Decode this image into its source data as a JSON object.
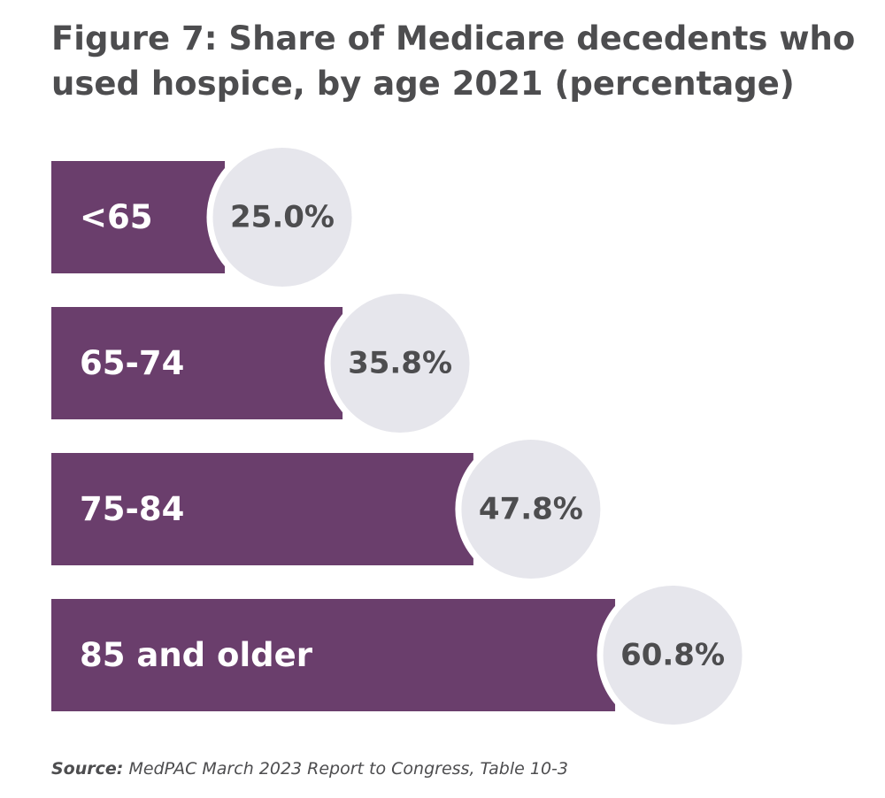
{
  "title": "Figure 7: Share of Medicare decedents who used hospice, by age 2021 (percentage)",
  "source": {
    "label": "Source:",
    "text": "MedPAC March 2023 Report to Congress, Table 10-3"
  },
  "colors": {
    "bar": "#6a3e6c",
    "bubble": "#e6e6ec",
    "bubble_ring": "#ffffff",
    "value_text": "#4d4d4f",
    "bar_text": "#ffffff"
  },
  "chart_data": {
    "type": "bar",
    "orientation": "horizontal",
    "categories": [
      "<65",
      "65-74",
      "75-84",
      "85 and older"
    ],
    "values": [
      25.0,
      35.8,
      47.8,
      60.8
    ],
    "value_labels": [
      "25.0%",
      "35.8%",
      "47.8%",
      "60.8%"
    ],
    "unit": "%",
    "title": "Figure 7: Share of Medicare decedents who used hospice, by age 2021 (percentage)",
    "xlabel": "",
    "ylabel": "",
    "grid": false,
    "legend": "none"
  }
}
